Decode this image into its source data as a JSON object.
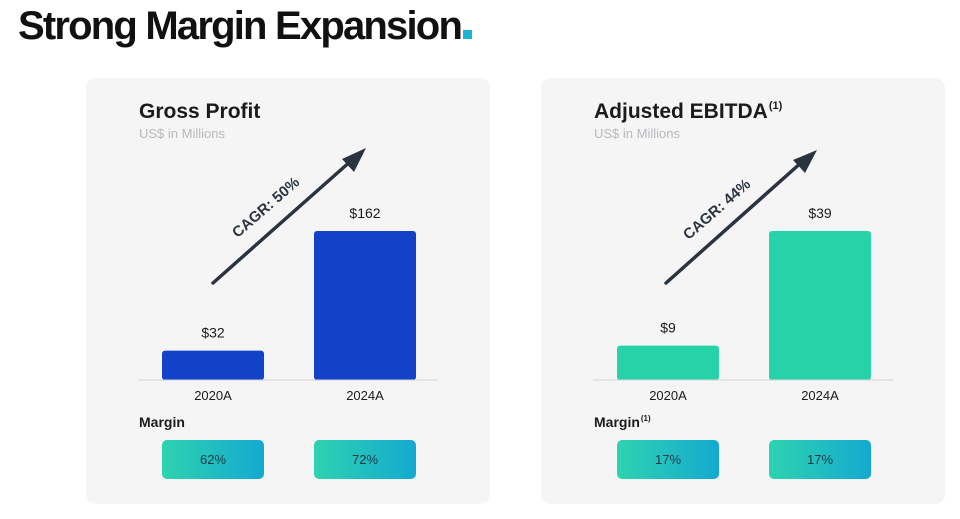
{
  "page": {
    "title": "Strong Margin Expansion",
    "accent_color": "#18b5d6"
  },
  "chart_data": [
    {
      "type": "bar",
      "title": "Gross Profit",
      "title_footnote": "",
      "subtitle": "US$ in Millions",
      "categories": [
        "2020A",
        "2024A"
      ],
      "values": [
        32,
        162
      ],
      "value_labels": [
        "$32",
        "$162"
      ],
      "bar_color": "#1142c7",
      "ylim": [
        0,
        162
      ],
      "grid": false,
      "cagr_label": "CAGR: 50%",
      "margin_label": "Margin",
      "margin_footnote": "",
      "margins": [
        "62%",
        "72%"
      ]
    },
    {
      "type": "bar",
      "title": "Adjusted EBITDA",
      "title_footnote": "(1)",
      "subtitle": "US$ in Millions",
      "categories": [
        "2020A",
        "2024A"
      ],
      "values": [
        9,
        39
      ],
      "value_labels": [
        "$9",
        "$39"
      ],
      "bar_color": "#27d4aa",
      "ylim": [
        0,
        39
      ],
      "grid": false,
      "cagr_label": "CAGR: 44%",
      "margin_label": "Margin",
      "margin_footnote": "(1)",
      "margins": [
        "17%",
        "17%"
      ]
    }
  ]
}
